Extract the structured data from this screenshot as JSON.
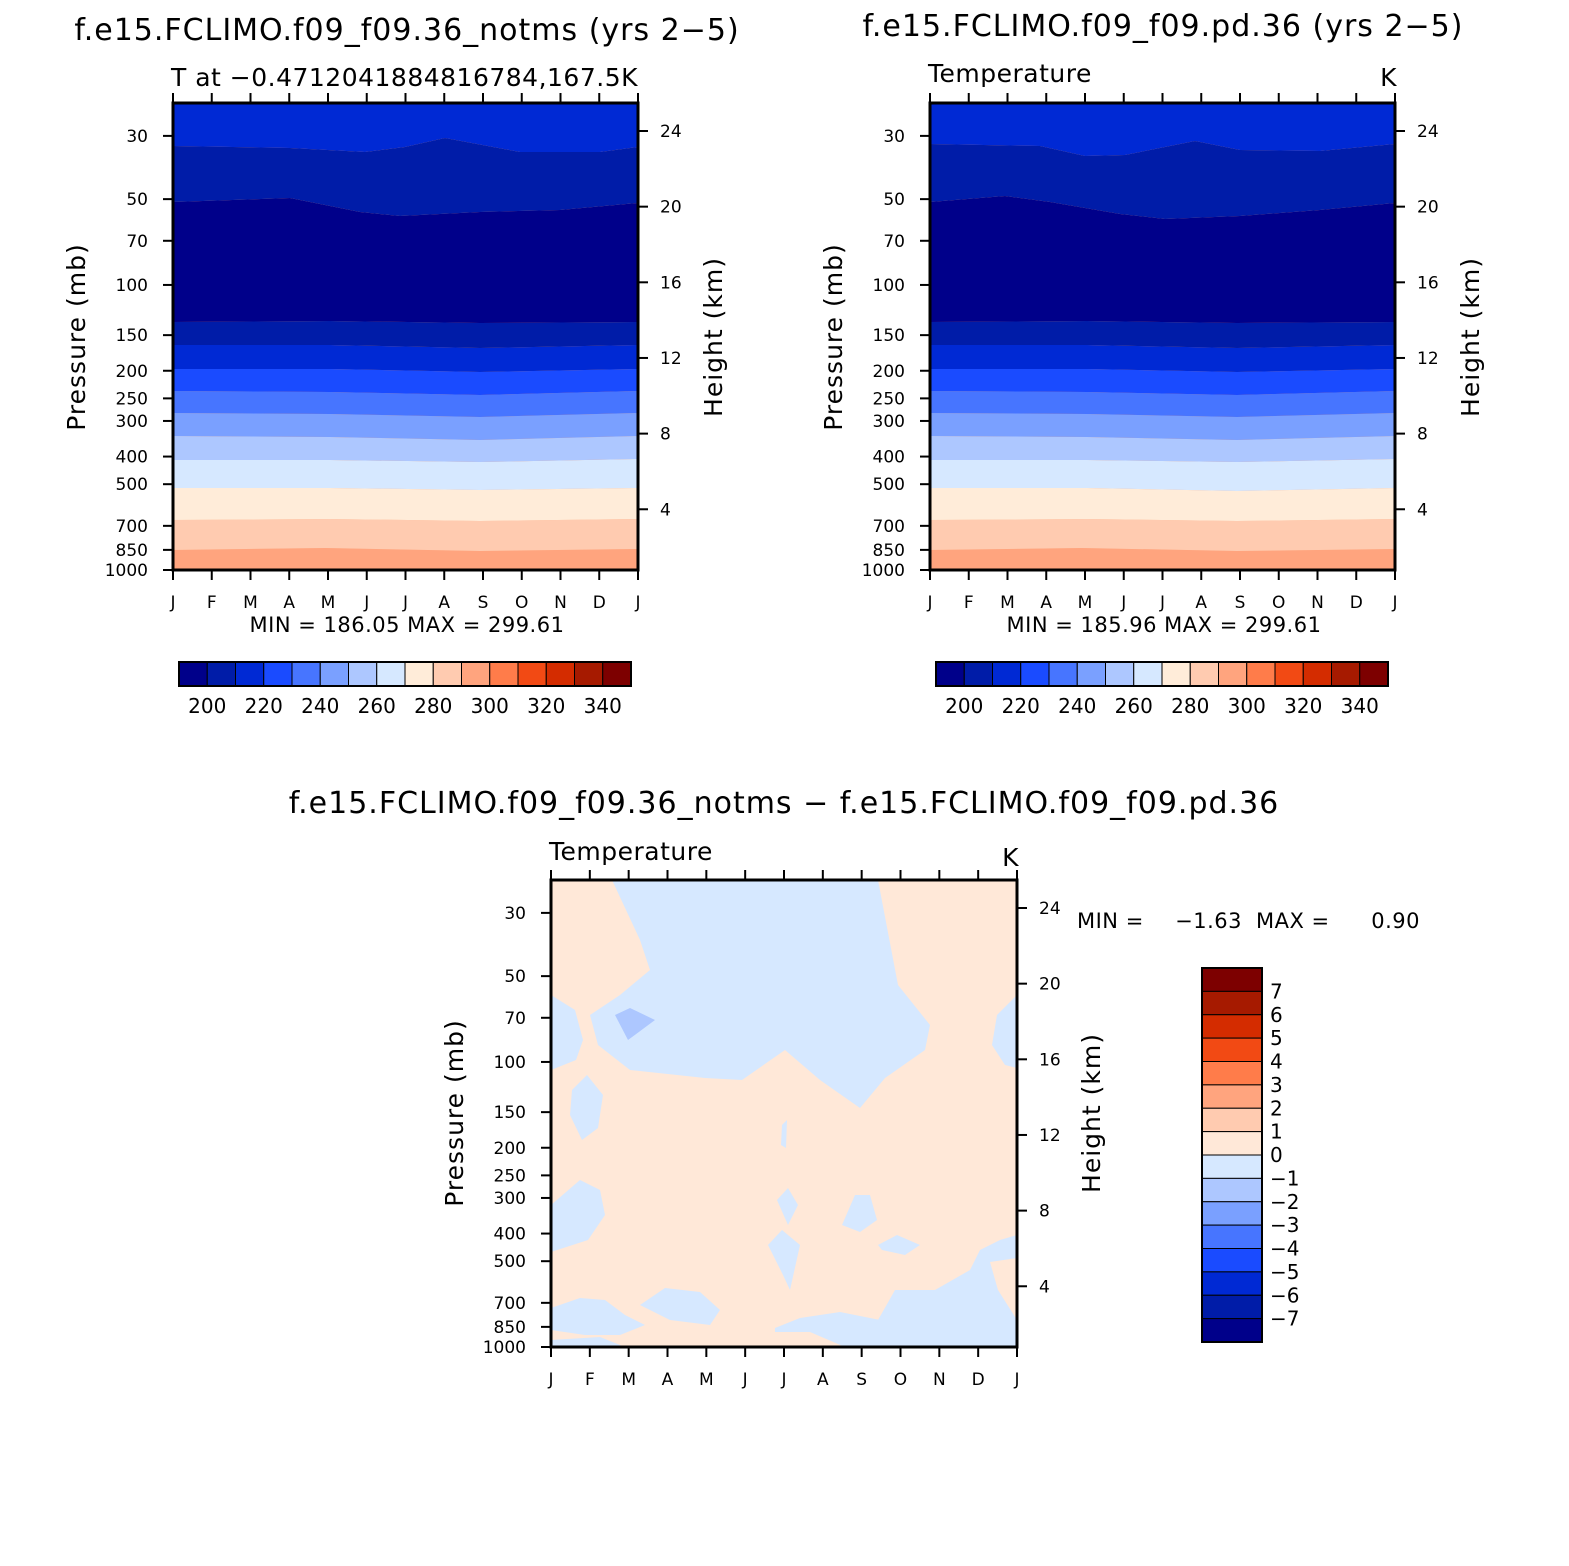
{
  "colors": {
    "t_levels": [
      "#00008a",
      "#001ca8",
      "#0029d4",
      "#1a4bff",
      "#4775ff",
      "#7aa0ff",
      "#adc7ff",
      "#d6e8ff",
      "#ffecd9",
      "#ffcbb0",
      "#ffa47e",
      "#ff7c4a",
      "#f24a14",
      "#d42c00",
      "#a61a00",
      "#7d0000"
    ],
    "diff_levels": [
      "#00008a",
      "#001ca8",
      "#0029d4",
      "#1a4bff",
      "#4775ff",
      "#7aa0ff",
      "#adc7ff",
      "#d6e8ff",
      "#ffe8d8",
      "#ffcbb0",
      "#ffa47e",
      "#ff7c4a",
      "#f24a14",
      "#d42c00",
      "#a61a00",
      "#7d0000"
    ]
  },
  "chart_data": [
    {
      "type": "heatmap",
      "title": "f.e15.FCLIMO.f09_f09.36_notms (yrs 2−5)",
      "subtitle_left": "T at −0.4712041884816784,167.5",
      "subtitle_right": "K",
      "xlabel": "",
      "ylabel": "Pressure (mb)",
      "ylabel_right": "Height (km)",
      "x_ticks": [
        "J",
        "F",
        "M",
        "A",
        "M",
        "J",
        "J",
        "A",
        "S",
        "O",
        "N",
        "D",
        "J"
      ],
      "y_ticks": [
        "30",
        "50",
        "70",
        "100",
        "150",
        "200",
        "250",
        "300",
        "400",
        "500",
        "700",
        "850",
        "1000"
      ],
      "y_right_ticks": [
        "24",
        "20",
        "16",
        "12",
        "8",
        "4"
      ],
      "minmax": "MIN = 186.05 MAX = 299.61",
      "colorbar_labels": [
        "200",
        "220",
        "240",
        "260",
        "280",
        "300",
        "320",
        "340"
      ]
    },
    {
      "type": "heatmap",
      "title": "f.e15.FCLIMO.f09_f09.pd.36 (yrs 2−5)",
      "subtitle_left": "Temperature",
      "subtitle_right": "K",
      "xlabel": "",
      "ylabel": "Pressure (mb)",
      "ylabel_right": "Height (km)",
      "x_ticks": [
        "J",
        "F",
        "M",
        "A",
        "M",
        "J",
        "J",
        "A",
        "S",
        "O",
        "N",
        "D",
        "J"
      ],
      "y_ticks": [
        "30",
        "50",
        "70",
        "100",
        "150",
        "200",
        "250",
        "300",
        "400",
        "500",
        "700",
        "850",
        "1000"
      ],
      "y_right_ticks": [
        "24",
        "20",
        "16",
        "12",
        "8",
        "4"
      ],
      "minmax": "MIN = 185.96 MAX = 299.61",
      "colorbar_labels": [
        "200",
        "220",
        "240",
        "260",
        "280",
        "300",
        "320",
        "340"
      ]
    },
    {
      "type": "heatmap",
      "title": "f.e15.FCLIMO.f09_f09.36_notms − f.e15.FCLIMO.f09_f09.pd.36",
      "subtitle_left": "Temperature",
      "subtitle_right": "K",
      "xlabel": "",
      "ylabel": "Pressure (mb)",
      "ylabel_right": "Height (km)",
      "x_ticks": [
        "J",
        "F",
        "M",
        "A",
        "M",
        "J",
        "J",
        "A",
        "S",
        "O",
        "N",
        "D",
        "J"
      ],
      "y_ticks": [
        "30",
        "50",
        "70",
        "100",
        "150",
        "200",
        "250",
        "300",
        "400",
        "500",
        "700",
        "850",
        "1000"
      ],
      "y_right_ticks": [
        "24",
        "20",
        "16",
        "12",
        "8",
        "4"
      ],
      "minmax_label_min": "MIN =",
      "minmax_val_min": "−1.63",
      "minmax_label_max": "MAX =",
      "minmax_val_max": "0.90",
      "colorbar_labels": [
        "7",
        "6",
        "5",
        "4",
        "3",
        "2",
        "1",
        "0",
        "−1",
        "−2",
        "−3",
        "−4",
        "−5",
        "−6",
        "−7"
      ]
    }
  ]
}
